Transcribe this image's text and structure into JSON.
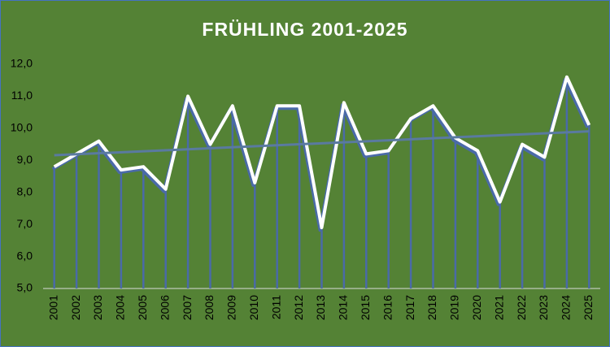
{
  "chart_data": {
    "type": "line",
    "title": "FRÜHLING  2001-2025",
    "categories": [
      "2001",
      "2002",
      "2003",
      "2004",
      "2005",
      "2006",
      "2007",
      "2008",
      "2009",
      "2010",
      "2011",
      "2012",
      "2013",
      "2014",
      "2015",
      "2016",
      "2017",
      "2018",
      "2019",
      "2020",
      "2021",
      "2022",
      "2023",
      "2024",
      "2025"
    ],
    "series": [
      {
        "name": "Frühling",
        "color": "#ffffff",
        "values": [
          8.8,
          9.2,
          9.6,
          8.7,
          8.8,
          8.1,
          11.0,
          9.5,
          10.7,
          8.3,
          10.7,
          10.7,
          6.9,
          10.8,
          9.2,
          9.3,
          10.3,
          10.7,
          9.7,
          9.3,
          7.7,
          9.5,
          9.1,
          11.6,
          10.1
        ]
      }
    ],
    "ylim": [
      5,
      12
    ],
    "yticks": [
      {
        "value": 5,
        "label": "5,0"
      },
      {
        "value": 6,
        "label": "6,0"
      },
      {
        "value": 7,
        "label": "7,0"
      },
      {
        "value": 8,
        "label": "8,0"
      },
      {
        "value": 9,
        "label": "9,0"
      },
      {
        "value": 10,
        "label": "10,0"
      },
      {
        "value": 11,
        "label": "11,0"
      },
      {
        "value": 12,
        "label": "12,0"
      }
    ],
    "drop_lines": true,
    "drop_line_color": "#4a6aa8",
    "trendline": true,
    "trendline_color": "#5a7aa0",
    "background": "#548235",
    "grid": false
  }
}
